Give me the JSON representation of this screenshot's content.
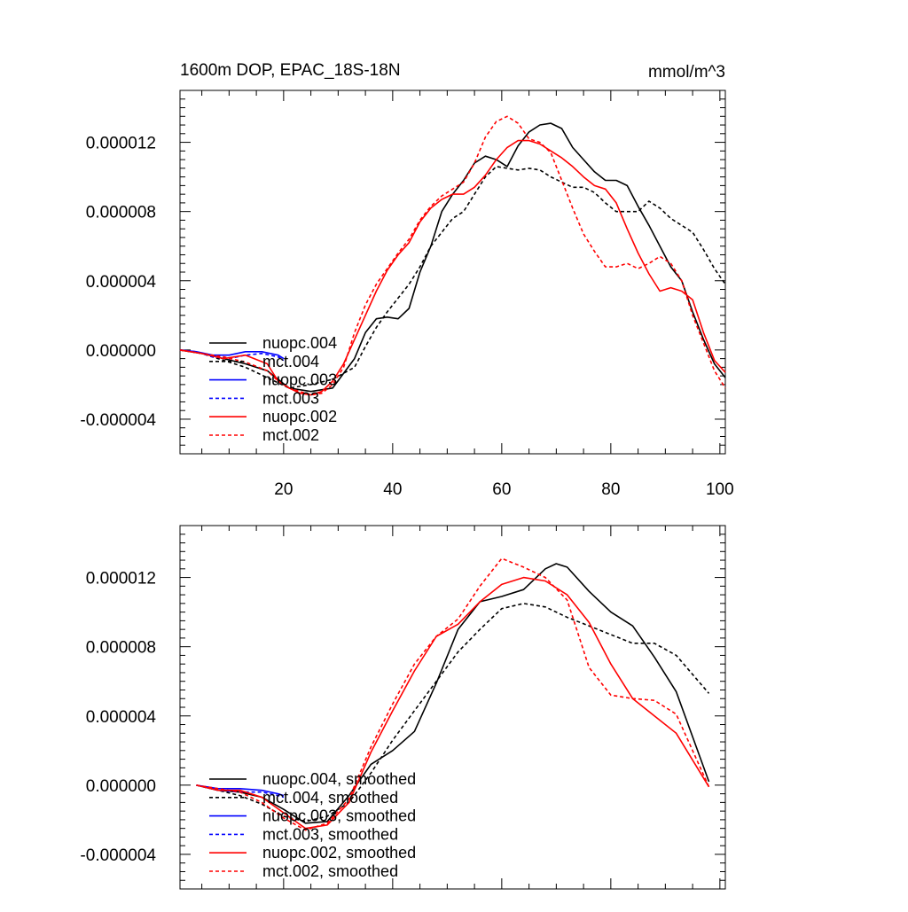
{
  "chart_data": [
    {
      "type": "line",
      "title": "1600m DOP, EPAC_18S-18N",
      "units": "mmol/m^3",
      "xlabel": "",
      "ylabel": "",
      "xlim": [
        1,
        101
      ],
      "ylim": [
        -6e-06,
        1.5e-05
      ],
      "xticks": [
        20,
        40,
        60,
        80,
        100
      ],
      "yticks": [
        -4e-06,
        0.0,
        4e-06,
        8e-06,
        1.2e-05
      ],
      "ytick_labels": [
        "-0.000004",
        "0.000000",
        "0.000004",
        "0.000008",
        "0.000012"
      ],
      "grid": false,
      "legend_placement": "lower-left",
      "series": [
        {
          "name": "nuopc.004",
          "color": "#000000",
          "dash": "solid",
          "x": [
            1,
            5,
            9,
            13,
            17,
            21,
            25,
            29,
            33,
            35,
            37,
            39,
            41,
            43,
            45,
            47,
            49,
            51,
            53,
            55,
            57,
            59,
            61,
            63,
            65,
            67,
            69,
            71,
            73,
            75,
            77,
            79,
            81,
            83,
            85,
            87,
            89,
            91,
            93,
            95,
            97,
            99,
            101
          ],
          "y": [
            0.0,
            -2e-07,
            -5e-07,
            -8e-07,
            -1.2e-06,
            -2.2e-06,
            -2.4e-06,
            -2.2e-06,
            -5e-07,
            1e-06,
            1.8e-06,
            1.9e-06,
            1.8e-06,
            2.4e-06,
            4.5e-06,
            6e-06,
            8e-06,
            9e-06,
            9.8e-06,
            1.08e-05,
            1.12e-05,
            1.1e-05,
            1.06e-05,
            1.18e-05,
            1.26e-05,
            1.3e-05,
            1.31e-05,
            1.28e-05,
            1.17e-05,
            1.1e-05,
            1.03e-05,
            9.8e-06,
            9.8e-06,
            9.5e-06,
            8.3e-06,
            7.2e-06,
            6e-06,
            4.8e-06,
            4e-06,
            2.2e-06,
            6e-07,
            -8e-07,
            -1.6e-06
          ]
        },
        {
          "name": "mct.004",
          "color": "#000000",
          "dash": "dashed",
          "x": [
            1,
            5,
            9,
            13,
            17,
            21,
            25,
            29,
            33,
            35,
            37,
            39,
            41,
            43,
            45,
            47,
            49,
            51,
            53,
            55,
            57,
            59,
            61,
            63,
            65,
            67,
            69,
            71,
            73,
            75,
            77,
            79,
            81,
            83,
            85,
            87,
            89,
            91,
            93,
            95,
            97,
            99,
            101
          ],
          "y": [
            0.0,
            -2e-07,
            -6e-07,
            -1e-06,
            -1.6e-06,
            -2.2e-06,
            -2e-06,
            -1.7e-06,
            -1e-06,
            2e-07,
            1.3e-06,
            2.2e-06,
            3e-06,
            3.8e-06,
            4.8e-06,
            6e-06,
            6.8e-06,
            7.6e-06,
            8e-06,
            9e-06,
            1e-05,
            1.06e-05,
            1.05e-05,
            1.04e-05,
            1.05e-05,
            1.04e-05,
            1e-05,
            9.7e-06,
            9.4e-06,
            9.4e-06,
            9.1e-06,
            8.5e-06,
            8e-06,
            8e-06,
            8e-06,
            8.6e-06,
            8.2e-06,
            7.6e-06,
            7.2e-06,
            6.8e-06,
            5.8e-06,
            4.7e-06,
            3.8e-06
          ]
        },
        {
          "name": "nuopc.003",
          "color": "#0000ff",
          "dash": "solid",
          "x": [
            1,
            4,
            7,
            10,
            13,
            16,
            19,
            20
          ],
          "y": [
            0.0,
            -1e-07,
            -3e-07,
            -3e-07,
            -1e-07,
            -1e-07,
            -3e-07,
            -5e-07
          ]
        },
        {
          "name": "mct.003",
          "color": "#0000ff",
          "dash": "dashed",
          "x": [
            1,
            4,
            7,
            10,
            13,
            16,
            19,
            20
          ],
          "y": [
            0.0,
            -1e-07,
            -4e-07,
            -5e-07,
            -3e-07,
            -2e-07,
            -4e-07,
            -6e-07
          ]
        },
        {
          "name": "nuopc.002",
          "color": "#ff0000",
          "dash": "solid",
          "x": [
            1,
            5,
            9,
            13,
            17,
            19,
            21,
            23,
            25,
            27,
            29,
            31,
            33,
            35,
            37,
            39,
            41,
            43,
            45,
            47,
            49,
            51,
            53,
            55,
            57,
            59,
            61,
            63,
            65,
            67,
            69,
            71,
            73,
            75,
            77,
            79,
            81,
            83,
            85,
            87,
            89,
            91,
            93,
            95,
            97,
            99,
            101
          ],
          "y": [
            0.0,
            -2e-07,
            -5e-07,
            -3e-07,
            -8e-07,
            -1.8e-06,
            -2.2e-06,
            -2.5e-06,
            -2.6e-06,
            -2.4e-06,
            -1.8e-06,
            -8e-07,
            6e-07,
            2e-06,
            3.4e-06,
            4.6e-06,
            5.5e-06,
            6.2e-06,
            7.4e-06,
            8.2e-06,
            8.7e-06,
            9e-06,
            9e-06,
            9.4e-06,
            1.01e-05,
            1.1e-05,
            1.17e-05,
            1.21e-05,
            1.21e-05,
            1.19e-05,
            1.15e-05,
            1.11e-05,
            1.06e-05,
            1e-05,
            9.5e-06,
            9.3e-06,
            8.5e-06,
            7e-06,
            5.6e-06,
            4.4e-06,
            3.4e-06,
            3.6e-06,
            3.4e-06,
            2.9e-06,
            1e-06,
            -6e-07,
            -1.3e-06
          ]
        },
        {
          "name": "mct.002",
          "color": "#ff0000",
          "dash": "dashed",
          "x": [
            1,
            5,
            9,
            13,
            17,
            19,
            21,
            23,
            25,
            27,
            29,
            31,
            33,
            35,
            37,
            39,
            41,
            43,
            45,
            47,
            49,
            51,
            53,
            55,
            57,
            59,
            61,
            63,
            65,
            67,
            69,
            71,
            73,
            75,
            77,
            79,
            81,
            83,
            85,
            87,
            89,
            91,
            93,
            95,
            97,
            99,
            101
          ],
          "y": [
            0.0,
            -2e-07,
            -4e-07,
            -7e-07,
            -1.2e-06,
            -1.8e-06,
            -2.2e-06,
            -2.4e-06,
            -2.6e-06,
            -2.5e-06,
            -2e-06,
            -1e-06,
            1e-06,
            2.6e-06,
            3.8e-06,
            4.7e-06,
            5.6e-06,
            6.4e-06,
            7.5e-06,
            8.3e-06,
            8.9e-06,
            9.3e-06,
            9.7e-06,
            1.08e-05,
            1.23e-05,
            1.32e-05,
            1.35e-05,
            1.31e-05,
            1.22e-05,
            1.2e-05,
            1.14e-05,
            9.8e-06,
            8.2e-06,
            6.7e-06,
            5.7e-06,
            4.8e-06,
            4.8e-06,
            5e-06,
            4.7e-06,
            5e-06,
            5.4e-06,
            5e-06,
            4e-06,
            2e-06,
            4e-07,
            -1.2e-06,
            -2.2e-06
          ]
        }
      ]
    },
    {
      "type": "line",
      "title": "",
      "xlabel": "",
      "ylabel": "",
      "xlim": [
        1,
        101
      ],
      "ylim": [
        -6e-06,
        1.5e-05
      ],
      "xticks": [
        20,
        40,
        60,
        80,
        100
      ],
      "yticks": [
        -4e-06,
        0.0,
        4e-06,
        8e-06,
        1.2e-05
      ],
      "ytick_labels": [
        "-0.000004",
        "0.000000",
        "0.000004",
        "0.000008",
        "0.000012"
      ],
      "grid": false,
      "legend_placement": "lower-left",
      "series": [
        {
          "name": "nuopc.004, smoothed",
          "color": "#000000",
          "dash": "solid",
          "x": [
            4,
            8,
            12,
            16,
            20,
            24,
            28,
            32,
            36,
            40,
            44,
            48,
            52,
            56,
            60,
            64,
            68,
            70,
            72,
            76,
            80,
            84,
            88,
            92,
            98
          ],
          "y": [
            0.0,
            -3e-07,
            -4e-07,
            -7e-07,
            -1.4e-06,
            -2.2e-06,
            -2.1e-06,
            -6e-07,
            1.2e-06,
            2e-06,
            3.1e-06,
            5.9e-06,
            9e-06,
            1.06e-05,
            1.09e-05,
            1.13e-05,
            1.25e-05,
            1.28e-05,
            1.26e-05,
            1.12e-05,
            1e-05,
            9.2e-06,
            7.4e-06,
            5.4e-06,
            2e-07
          ]
        },
        {
          "name": "mct.004, smoothed",
          "color": "#000000",
          "dash": "dashed",
          "x": [
            4,
            8,
            12,
            16,
            20,
            24,
            28,
            32,
            36,
            40,
            44,
            48,
            52,
            56,
            60,
            64,
            68,
            72,
            76,
            80,
            84,
            88,
            92,
            98
          ],
          "y": [
            0.0,
            -3e-07,
            -6e-07,
            -1.1e-06,
            -1.8e-06,
            -2.1e-06,
            -1.8e-06,
            -1e-06,
            7e-07,
            2.6e-06,
            4.3e-06,
            6e-06,
            7.7e-06,
            9e-06,
            1.02e-05,
            1.05e-05,
            1.03e-05,
            9.7e-06,
            9.2e-06,
            8.7e-06,
            8.2e-06,
            8.2e-06,
            7.5e-06,
            5.3e-06
          ]
        },
        {
          "name": "nuopc.003, smoothed",
          "color": "#0000ff",
          "dash": "solid",
          "x": [
            4,
            8,
            12,
            16,
            19,
            20
          ],
          "y": [
            0.0,
            -2e-07,
            -2e-07,
            -3e-07,
            -5e-07,
            -6e-07
          ]
        },
        {
          "name": "mct.003, smoothed",
          "color": "#0000ff",
          "dash": "dashed",
          "x": [
            4,
            8,
            12,
            16,
            19,
            20
          ],
          "y": [
            0.0,
            -3e-07,
            -4e-07,
            -4e-07,
            -6e-07,
            -7e-07
          ]
        },
        {
          "name": "nuopc.002, smoothed",
          "color": "#ff0000",
          "dash": "solid",
          "x": [
            4,
            8,
            12,
            16,
            20,
            24,
            28,
            32,
            36,
            40,
            44,
            48,
            52,
            56,
            60,
            64,
            68,
            72,
            76,
            80,
            84,
            88,
            92,
            98
          ],
          "y": [
            0.0,
            -3e-07,
            -3e-07,
            -7e-07,
            -1.6e-06,
            -2.5e-06,
            -2.3e-06,
            -1e-06,
            1.9e-06,
            4.3e-06,
            6.6e-06,
            8.6e-06,
            9.3e-06,
            1.06e-05,
            1.16e-05,
            1.2e-05,
            1.18e-05,
            1.1e-05,
            9.4e-06,
            7e-06,
            5e-06,
            4e-06,
            3e-06,
            -1e-07
          ]
        },
        {
          "name": "mct.002, smoothed",
          "color": "#ff0000",
          "dash": "dashed",
          "x": [
            4,
            8,
            12,
            16,
            20,
            24,
            28,
            32,
            36,
            40,
            44,
            48,
            52,
            56,
            60,
            64,
            68,
            72,
            76,
            80,
            84,
            88,
            92,
            98
          ],
          "y": [
            0.0,
            -2e-07,
            -4e-07,
            -1e-06,
            -1.9e-06,
            -2.6e-06,
            -2.2e-06,
            -8e-07,
            2.2e-06,
            4.7e-06,
            7e-06,
            8.6e-06,
            9.6e-06,
            1.15e-05,
            1.31e-05,
            1.26e-05,
            1.2e-05,
            1.07e-05,
            6.8e-06,
            5.2e-06,
            5e-06,
            4.9e-06,
            4.1e-06,
            -1e-07
          ]
        }
      ]
    }
  ]
}
